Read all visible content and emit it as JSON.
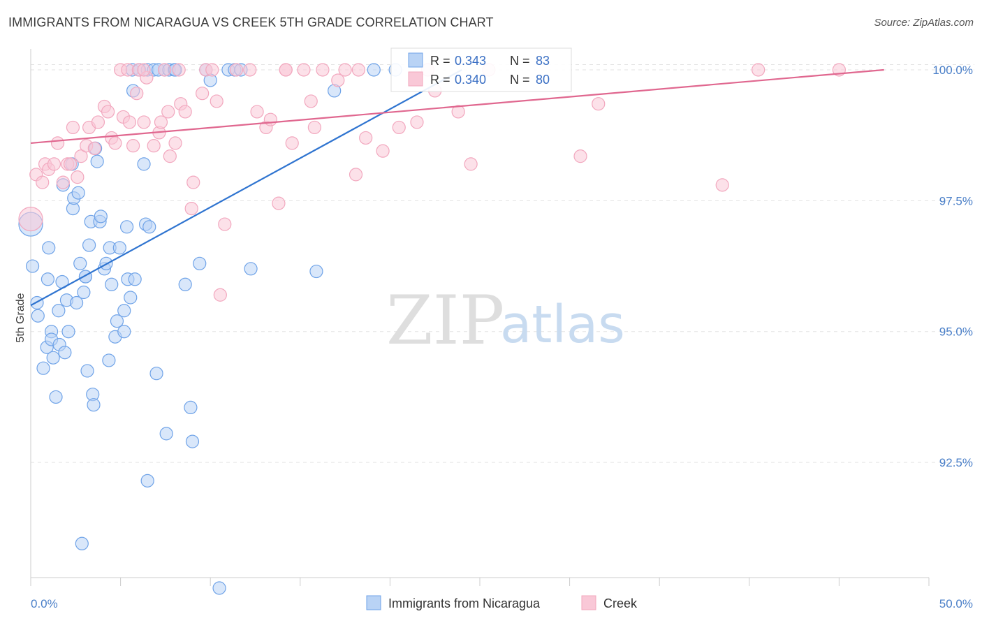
{
  "title": "IMMIGRANTS FROM NICARAGUA VS CREEK 5TH GRADE CORRELATION CHART",
  "source": "Source: ZipAtlas.com",
  "watermark": {
    "zip": "ZIP",
    "atlas": "atlas"
  },
  "colors": {
    "blue": "#6fa3e8",
    "blue_line": "#2f74d0",
    "pink": "#f2a7be",
    "pink_line": "#e0678f",
    "axis_text": "#4a7fc8"
  },
  "chart_data": {
    "type": "scatter",
    "title": "IMMIGRANTS FROM NICARAGUA VS CREEK 5TH GRADE CORRELATION CHART",
    "xlabel": "",
    "ylabel": "5th Grade",
    "xlim": [
      0,
      50
    ],
    "ylim": [
      90.3,
      100.4
    ],
    "x_tick_labels": [
      {
        "value": 0,
        "label": "0.0%"
      },
      {
        "value": 50,
        "label": "50.0%"
      }
    ],
    "y_ticks": [
      {
        "value": 100.0,
        "label": "100.0%"
      },
      {
        "value": 97.5,
        "label": "97.5%"
      },
      {
        "value": 95.0,
        "label": "95.0%"
      },
      {
        "value": 92.5,
        "label": "92.5%"
      }
    ],
    "legend_stats": [
      {
        "r_label": "R =",
        "r": "0.343",
        "n_label": "N =",
        "n": "83"
      },
      {
        "r_label": "R =",
        "r": "0.340",
        "n_label": "N =",
        "n": "80"
      }
    ],
    "series": [
      {
        "name": "Immigrants from Nicaragua",
        "color": "#6fa3e8",
        "trend": {
          "x0": 0.0,
          "y0": 95.5,
          "x1": 24.0,
          "y1": 100.0
        },
        "points": [
          [
            0.0,
            97.05
          ],
          [
            0.1,
            96.25
          ],
          [
            0.35,
            95.55
          ],
          [
            0.4,
            95.3
          ],
          [
            0.7,
            94.3
          ],
          [
            0.9,
            94.7
          ],
          [
            0.95,
            96.0
          ],
          [
            1.15,
            95.0
          ],
          [
            1.15,
            94.85
          ],
          [
            1.25,
            94.5
          ],
          [
            1.4,
            93.75
          ],
          [
            1.55,
            95.4
          ],
          [
            1.6,
            94.75
          ],
          [
            1.75,
            95.95
          ],
          [
            1.8,
            97.8
          ],
          [
            1.9,
            94.6
          ],
          [
            2.0,
            95.6
          ],
          [
            2.1,
            95.0
          ],
          [
            2.3,
            98.2
          ],
          [
            2.35,
            97.35
          ],
          [
            2.4,
            97.55
          ],
          [
            2.55,
            95.55
          ],
          [
            2.65,
            97.65
          ],
          [
            2.75,
            96.3
          ],
          [
            2.95,
            95.75
          ],
          [
            3.05,
            96.05
          ],
          [
            3.15,
            94.25
          ],
          [
            3.25,
            96.65
          ],
          [
            3.35,
            97.1
          ],
          [
            3.45,
            93.8
          ],
          [
            3.5,
            93.6
          ],
          [
            3.6,
            98.5
          ],
          [
            3.7,
            98.25
          ],
          [
            3.85,
            97.1
          ],
          [
            3.9,
            97.2
          ],
          [
            4.1,
            96.2
          ],
          [
            4.2,
            96.3
          ],
          [
            4.35,
            94.45
          ],
          [
            4.4,
            96.6
          ],
          [
            4.5,
            95.9
          ],
          [
            4.7,
            94.9
          ],
          [
            4.8,
            95.2
          ],
          [
            4.95,
            96.6
          ],
          [
            5.2,
            95.4
          ],
          [
            5.2,
            95.0
          ],
          [
            5.35,
            97.0
          ],
          [
            5.4,
            96.0
          ],
          [
            5.55,
            95.65
          ],
          [
            5.65,
            100.0
          ],
          [
            5.7,
            99.6
          ],
          [
            5.8,
            96.0
          ],
          [
            6.05,
            100.0
          ],
          [
            6.3,
            98.2
          ],
          [
            6.4,
            97.05
          ],
          [
            6.5,
            100.0
          ],
          [
            6.5,
            92.15
          ],
          [
            6.6,
            97.0
          ],
          [
            6.85,
            100.0
          ],
          [
            7.0,
            94.2
          ],
          [
            7.1,
            100.0
          ],
          [
            7.45,
            100.0
          ],
          [
            7.55,
            93.05
          ],
          [
            7.7,
            100.0
          ],
          [
            8.0,
            100.0
          ],
          [
            8.05,
            100.0
          ],
          [
            8.6,
            95.9
          ],
          [
            8.9,
            93.55
          ],
          [
            9.0,
            92.9
          ],
          [
            9.4,
            96.3
          ],
          [
            9.75,
            100.0
          ],
          [
            10.0,
            99.8
          ],
          [
            10.5,
            90.1
          ],
          [
            11.0,
            100.0
          ],
          [
            11.35,
            100.0
          ],
          [
            11.7,
            100.0
          ],
          [
            12.25,
            96.2
          ],
          [
            15.9,
            96.15
          ],
          [
            16.9,
            99.6
          ],
          [
            19.1,
            100.0
          ],
          [
            20.3,
            100.0
          ],
          [
            2.85,
            90.95
          ],
          [
            1.0,
            96.6
          ],
          [
            3.05,
            96.05
          ]
        ]
      },
      {
        "name": "Creek",
        "color": "#f2a7be",
        "trend": {
          "x0": 0.0,
          "y0": 98.6,
          "x1": 47.5,
          "y1": 100.0
        },
        "points": [
          [
            0.0,
            97.15
          ],
          [
            0.3,
            98.0
          ],
          [
            0.65,
            97.85
          ],
          [
            0.8,
            98.2
          ],
          [
            1.0,
            98.1
          ],
          [
            1.3,
            98.2
          ],
          [
            1.5,
            98.6
          ],
          [
            1.8,
            97.85
          ],
          [
            2.05,
            98.2
          ],
          [
            2.2,
            98.2
          ],
          [
            2.35,
            98.9
          ],
          [
            2.6,
            97.95
          ],
          [
            2.8,
            98.35
          ],
          [
            3.1,
            98.55
          ],
          [
            3.25,
            98.9
          ],
          [
            3.55,
            98.5
          ],
          [
            3.75,
            99.0
          ],
          [
            4.1,
            99.3
          ],
          [
            4.3,
            99.2
          ],
          [
            4.5,
            98.7
          ],
          [
            4.7,
            98.6
          ],
          [
            5.0,
            100.0
          ],
          [
            5.15,
            99.1
          ],
          [
            5.4,
            100.0
          ],
          [
            5.5,
            99.0
          ],
          [
            5.7,
            98.55
          ],
          [
            5.9,
            99.55
          ],
          [
            6.0,
            100.0
          ],
          [
            6.3,
            99.0
          ],
          [
            6.45,
            99.85
          ],
          [
            6.85,
            98.55
          ],
          [
            7.15,
            98.8
          ],
          [
            7.25,
            99.0
          ],
          [
            7.45,
            100.0
          ],
          [
            7.65,
            99.2
          ],
          [
            7.75,
            98.35
          ],
          [
            8.05,
            98.6
          ],
          [
            8.25,
            100.0
          ],
          [
            8.35,
            99.35
          ],
          [
            8.6,
            99.2
          ],
          [
            8.95,
            97.35
          ],
          [
            9.05,
            97.85
          ],
          [
            9.55,
            99.55
          ],
          [
            9.75,
            100.0
          ],
          [
            10.1,
            100.0
          ],
          [
            10.35,
            99.4
          ],
          [
            10.55,
            95.7
          ],
          [
            10.8,
            97.05
          ],
          [
            11.45,
            100.0
          ],
          [
            12.2,
            100.0
          ],
          [
            12.6,
            99.2
          ],
          [
            13.1,
            98.9
          ],
          [
            13.35,
            99.05
          ],
          [
            13.8,
            97.45
          ],
          [
            14.2,
            100.0
          ],
          [
            14.55,
            98.6
          ],
          [
            15.2,
            100.0
          ],
          [
            15.6,
            99.4
          ],
          [
            15.8,
            98.9
          ],
          [
            16.25,
            100.0
          ],
          [
            17.1,
            99.8
          ],
          [
            17.5,
            100.0
          ],
          [
            18.1,
            98.0
          ],
          [
            18.25,
            100.0
          ],
          [
            18.65,
            98.7
          ],
          [
            19.6,
            98.45
          ],
          [
            20.5,
            98.9
          ],
          [
            21.5,
            99.0
          ],
          [
            22.1,
            100.0
          ],
          [
            22.5,
            99.6
          ],
          [
            23.8,
            99.2
          ],
          [
            24.5,
            98.2
          ],
          [
            25.5,
            100.0
          ],
          [
            30.6,
            98.35
          ],
          [
            31.6,
            99.35
          ],
          [
            38.5,
            97.8
          ],
          [
            40.5,
            100.0
          ],
          [
            45.0,
            100.0
          ],
          [
            6.3,
            100.0
          ],
          [
            14.2,
            100.0
          ]
        ]
      }
    ]
  }
}
